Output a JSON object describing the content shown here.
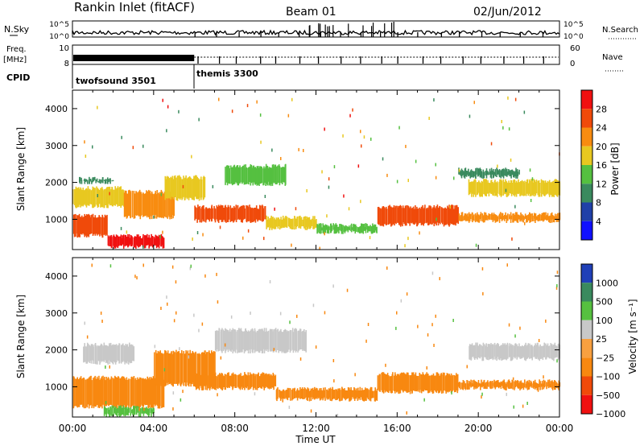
{
  "header": {
    "station": "Rankin Inlet (fitACF)",
    "beam": "Beam 01",
    "date": "02/Jun/2012"
  },
  "strips": {
    "nsky_label": "N.Sky",
    "nsky_top": "10^5",
    "nsky_bottom": "10^0",
    "nsearch_label": "N.Search",
    "freq_label": "Freq.",
    "freq_unit": "[MHz]",
    "freq_top": "10",
    "freq_bottom": "8",
    "nave_top": "60",
    "nave_bottom": "0",
    "nave_label": "Nave",
    "cpid_label": "CPID",
    "cpid_1": "twofsound 3501",
    "cpid_2": "themis 3300"
  },
  "panels": {
    "range_ticks": [
      "1000",
      "2000",
      "3000",
      "4000"
    ],
    "ylabel": "Slant Range [km]",
    "xlabel": "Time UT",
    "time_ticks": [
      "00:00",
      "04:00",
      "08:00",
      "12:00",
      "16:00",
      "20:00",
      "00:00"
    ]
  },
  "power_scale": {
    "label": "Power [dB]",
    "ticks": [
      "4",
      "8",
      "12",
      "16",
      "20",
      "24",
      "28"
    ],
    "colors": [
      "#1010ff",
      "#2040a8",
      "#3a8a5e",
      "#55c040",
      "#e8c820",
      "#f88c10",
      "#f04a0a",
      "#f01010"
    ]
  },
  "velocity_scale": {
    "label": "Velocity [m s⁻¹]",
    "ticks": [
      "1000",
      "500",
      "100",
      "25",
      "−25",
      "−100",
      "−500",
      "−1000"
    ],
    "colors": [
      "#2040b8",
      "#3a8a5e",
      "#56c040",
      "#c8c8c8",
      "#f8a040",
      "#f88810",
      "#f04a0a",
      "#f01010"
    ]
  },
  "chart_data": {
    "type": "heatmap",
    "x_range_hours": [
      0,
      24
    ],
    "y_range_km": [
      180,
      4500
    ],
    "power_bands_db": [
      {
        "t0": 0.0,
        "t1": 1.7,
        "r0": 500,
        "r1": 1150,
        "v": 26
      },
      {
        "t0": 1.7,
        "t1": 4.5,
        "r0": 200,
        "r1": 600,
        "v": 28
      },
      {
        "t0": 0.0,
        "t1": 2.5,
        "r0": 1300,
        "r1": 1900,
        "v": 18
      },
      {
        "t0": 0.3,
        "t1": 2.0,
        "r0": 1950,
        "r1": 2150,
        "v": 8
      },
      {
        "t0": 2.5,
        "t1": 5.0,
        "r0": 1000,
        "r1": 1800,
        "v": 22
      },
      {
        "t0": 4.5,
        "t1": 6.5,
        "r0": 1500,
        "r1": 2200,
        "v": 16
      },
      {
        "t0": 6.0,
        "t1": 9.5,
        "r0": 900,
        "r1": 1400,
        "v": 24
      },
      {
        "t0": 7.5,
        "t1": 10.5,
        "r0": 1900,
        "r1": 2500,
        "v": 12
      },
      {
        "t0": 9.5,
        "t1": 12.0,
        "r0": 700,
        "r1": 1100,
        "v": 16
      },
      {
        "t0": 12.0,
        "t1": 15.0,
        "r0": 600,
        "r1": 900,
        "v": 12
      },
      {
        "t0": 15.0,
        "t1": 19.0,
        "r0": 800,
        "r1": 1400,
        "v": 26
      },
      {
        "t0": 19.0,
        "t1": 24.0,
        "r0": 900,
        "r1": 1200,
        "v": 20
      },
      {
        "t0": 19.5,
        "t1": 24.0,
        "r0": 1600,
        "r1": 2100,
        "v": 18
      },
      {
        "t0": 19.0,
        "t1": 22.0,
        "r0": 2100,
        "r1": 2400,
        "v": 8
      }
    ],
    "velocity_bands_ms": [
      {
        "t0": 0.0,
        "t1": 4.5,
        "r0": 400,
        "r1": 1300,
        "v": -300
      },
      {
        "t0": 1.5,
        "t1": 4.0,
        "r0": 180,
        "r1": 500,
        "v": 200
      },
      {
        "t0": 0.5,
        "t1": 3.0,
        "r0": 1600,
        "r1": 2200,
        "v": 0
      },
      {
        "t0": 4.0,
        "t1": 7.0,
        "r0": 1000,
        "r1": 2000,
        "v": -300
      },
      {
        "t0": 6.0,
        "t1": 10.0,
        "r0": 900,
        "r1": 1400,
        "v": -300
      },
      {
        "t0": 7.0,
        "t1": 11.5,
        "r0": 1900,
        "r1": 2600,
        "v": 0
      },
      {
        "t0": 10.0,
        "t1": 15.0,
        "r0": 600,
        "r1": 1000,
        "v": -200
      },
      {
        "t0": 15.0,
        "t1": 19.0,
        "r0": 800,
        "r1": 1400,
        "v": -300
      },
      {
        "t0": 19.0,
        "t1": 24.0,
        "r0": 900,
        "r1": 1200,
        "v": -150
      },
      {
        "t0": 19.5,
        "t1": 24.0,
        "r0": 1700,
        "r1": 2200,
        "v": 0
      }
    ]
  }
}
